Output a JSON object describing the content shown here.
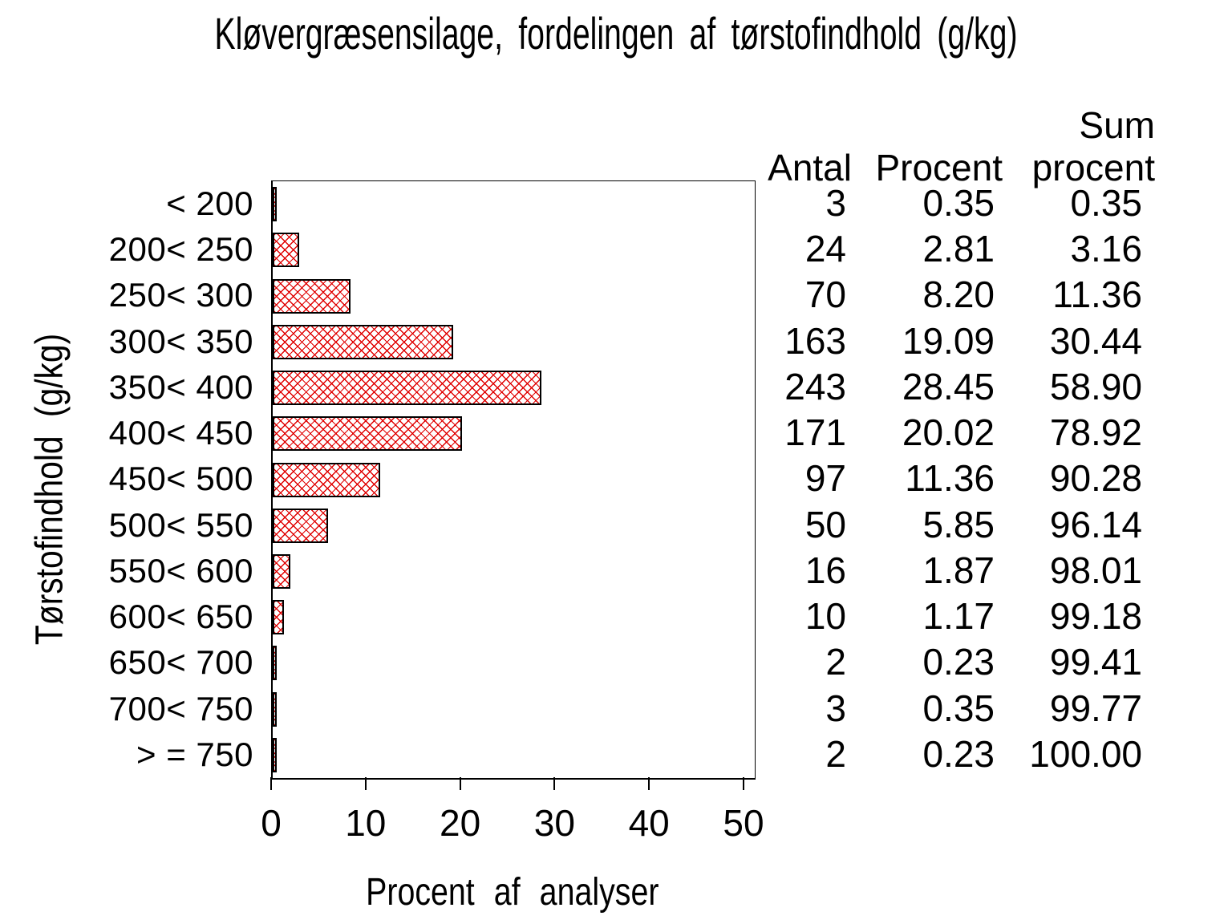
{
  "chart_data": {
    "type": "bar",
    "orientation": "horizontal",
    "title": "Kløvergræsensilage, fordelingen af tørstofindhold (g/kg)",
    "xlabel": "Procent af analyser",
    "ylabel": "Tørstofindhold (g/kg)",
    "xlim": [
      0,
      50
    ],
    "xticks": [
      0,
      10,
      20,
      30,
      40,
      50
    ],
    "grid": false,
    "legend": "none",
    "bar_style": {
      "fill_pattern": "diagonal-crosshatch",
      "hatch_color": "#e00000",
      "outline_color": "#000000",
      "background": "#ffffff"
    },
    "categories": [
      "< 200",
      "200< 250",
      "250< 300",
      "300< 350",
      "350< 400",
      "400< 450",
      "450< 500",
      "500< 550",
      "550< 600",
      "600< 650",
      "650< 700",
      "700< 750",
      "> = 750"
    ],
    "values": [
      0.35,
      2.81,
      8.2,
      19.09,
      28.45,
      20.02,
      11.36,
      5.85,
      1.87,
      1.17,
      0.23,
      0.35,
      0.23
    ],
    "counts": [
      3,
      24,
      70,
      163,
      243,
      171,
      97,
      50,
      16,
      10,
      2,
      3,
      2
    ],
    "cum_percent": [
      0.35,
      3.16,
      11.36,
      30.44,
      58.9,
      78.92,
      90.28,
      96.14,
      98.01,
      99.18,
      99.41,
      99.77,
      100.0
    ]
  },
  "table": {
    "col_headers": {
      "antal": "Antal",
      "procent": "Procent",
      "sum_top": "Sum",
      "sum_bottom": "procent"
    },
    "rows": [
      [
        "3",
        "0.35",
        "0.35"
      ],
      [
        "24",
        "2.81",
        "3.16"
      ],
      [
        "70",
        "8.20",
        "11.36"
      ],
      [
        "163",
        "19.09",
        "30.44"
      ],
      [
        "243",
        "28.45",
        "58.90"
      ],
      [
        "171",
        "20.02",
        "78.92"
      ],
      [
        "97",
        "11.36",
        "90.28"
      ],
      [
        "50",
        "5.85",
        "96.14"
      ],
      [
        "16",
        "1.87",
        "98.01"
      ],
      [
        "10",
        "1.17",
        "99.18"
      ],
      [
        "2",
        "0.23",
        "99.41"
      ],
      [
        "3",
        "0.35",
        "99.77"
      ],
      [
        "2",
        "0.23",
        "100.00"
      ]
    ]
  }
}
